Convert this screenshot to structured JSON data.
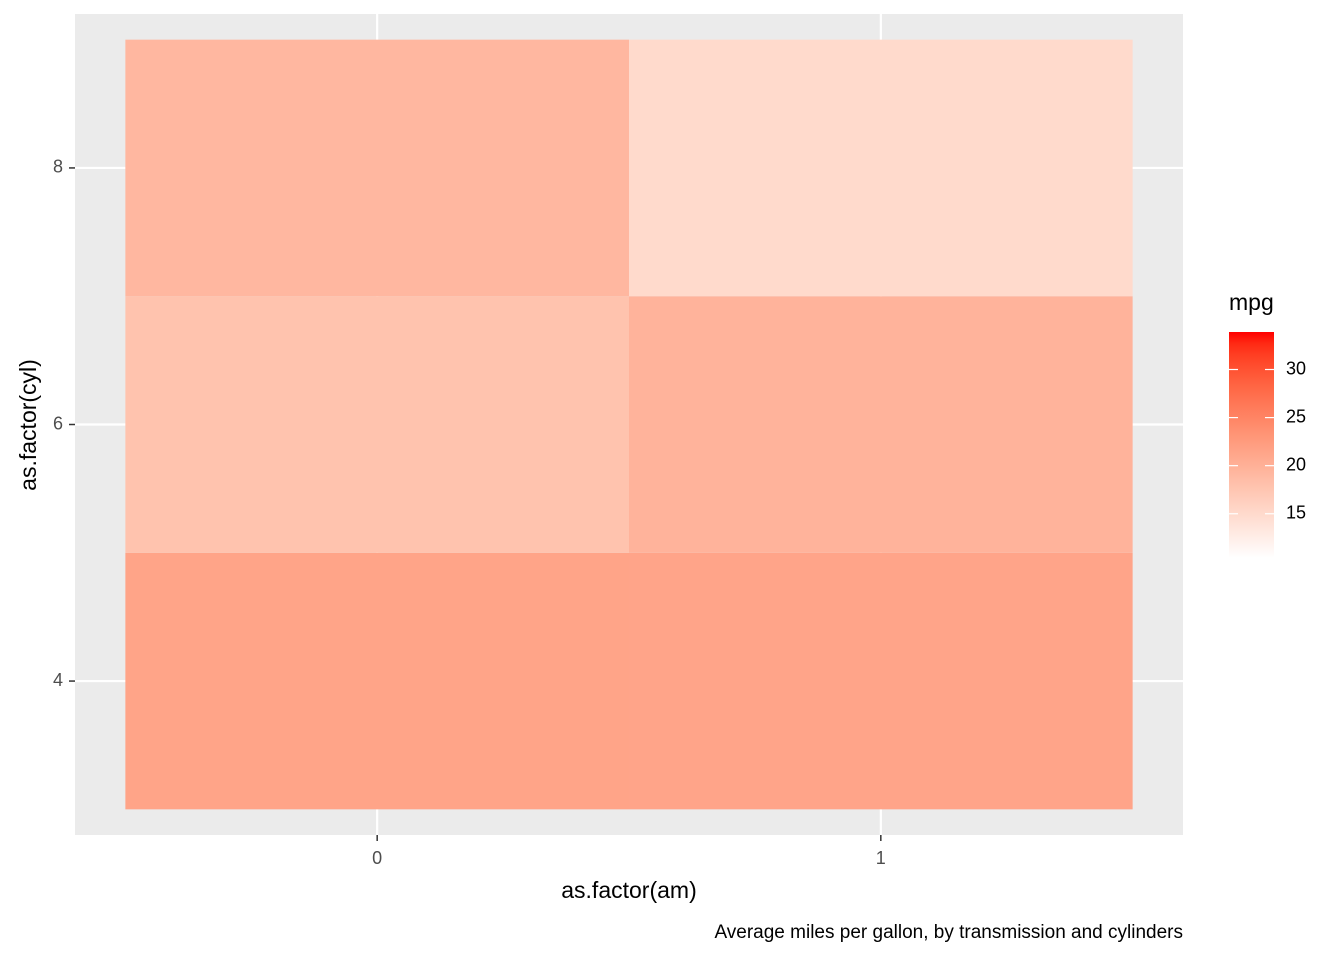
{
  "chart_data": {
    "type": "heatmap",
    "caption": "Average miles per gallon, by transmission and cylinders",
    "x_label": "as.factor(am)",
    "y_label": "as.factor(cyl)",
    "x_categories": [
      "0",
      "1"
    ],
    "y_categories": [
      "4",
      "6",
      "8"
    ],
    "values": [
      [
        21.5,
        21.4
      ],
      [
        17.8,
        19.7
      ],
      [
        19.2,
        15.0
      ]
    ],
    "legend_title": "mpg",
    "color_low": "#FFFFFF",
    "color_high": "#FF0000",
    "color_limits": [
      10.4,
      33.9
    ],
    "color_ticks": [
      15,
      20,
      25,
      30
    ],
    "panel_background": "#EBEBEB",
    "grid": true,
    "legend_position": "right"
  }
}
